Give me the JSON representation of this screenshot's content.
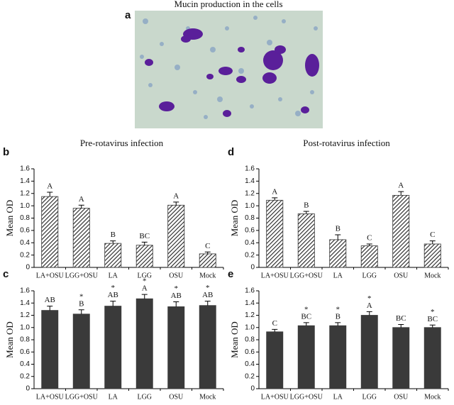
{
  "figure": {
    "label": "a",
    "title": "Mucin production in the cells"
  },
  "chart_data": [
    {
      "type": "bar",
      "panel": "b",
      "title": "Pre-rotavirus infection",
      "y_label": "Mean OD",
      "categories": [
        "LA+OSU",
        "LGG+OSU",
        "LA",
        "LGG",
        "OSU",
        "Mock"
      ],
      "values": [
        1.15,
        0.96,
        0.39,
        0.36,
        1.01,
        0.22
      ],
      "errors": [
        0.07,
        0.05,
        0.04,
        0.05,
        0.05,
        0.03
      ],
      "letters": [
        "A",
        "A",
        "B",
        "BC",
        "A",
        "C"
      ],
      "color": "#333333",
      "hatch": true,
      "ylim": [
        0,
        1.6
      ],
      "yticks": [
        0,
        0.2,
        0.4,
        0.6,
        0.8,
        {
          "value": 1,
          "label": "1.0"
        },
        1.2,
        1.4,
        1.6
      ]
    },
    {
      "type": "bar",
      "panel": "d",
      "title": "Post-rotavirus infection",
      "y_label": "Mean OD",
      "categories": [
        "LA+OSU",
        "LGG+OSU",
        "LA",
        "LGG",
        "OSU",
        "Mock"
      ],
      "values": [
        1.09,
        0.87,
        0.45,
        0.35,
        1.17,
        0.38
      ],
      "errors": [
        0.04,
        0.04,
        0.08,
        0.03,
        0.06,
        0.05
      ],
      "letters": [
        "A",
        "B",
        "B",
        "C",
        "A",
        "C"
      ],
      "color": "#333333",
      "hatch": true,
      "ylim": [
        0,
        1.6
      ],
      "yticks": [
        0,
        0.2,
        0.4,
        0.6,
        0.8,
        {
          "value": 1,
          "label": "1.0"
        },
        1.2,
        1.4,
        1.6
      ]
    },
    {
      "type": "bar",
      "panel": "c",
      "y_label": "Mean OD",
      "categories": [
        "LA+OSU",
        "LGG+OSU",
        "LA",
        "LGG",
        "OSU",
        "Mock"
      ],
      "values": [
        1.28,
        1.22,
        1.35,
        1.47,
        1.34,
        1.36
      ],
      "errors": [
        0.07,
        0.07,
        0.08,
        0.07,
        0.08,
        0.07
      ],
      "letters": [
        "AB",
        "B",
        "AB",
        "A",
        "AB",
        "AB"
      ],
      "stars": [
        null,
        "*",
        "*",
        "*",
        "*",
        "*"
      ],
      "color": "#3a3a3a",
      "hatch": false,
      "ylim": [
        0,
        1.6
      ],
      "yticks": [
        0,
        0.2,
        0.4,
        0.6,
        0.8,
        {
          "value": 1,
          "label": "1.0"
        },
        1.2,
        1.4,
        1.6
      ]
    },
    {
      "type": "bar",
      "panel": "e",
      "y_label": "Mean OD",
      "categories": [
        "LA+OSU",
        "LGG+OSU",
        "LA",
        "LGG",
        "OSU",
        "Mock"
      ],
      "values": [
        0.93,
        1.03,
        1.03,
        1.2,
        1.0,
        1.0
      ],
      "errors": [
        0.04,
        0.05,
        0.05,
        0.06,
        0.05,
        0.04
      ],
      "letters": [
        "C",
        "BC",
        "B",
        "A",
        "BC",
        "BC"
      ],
      "stars": [
        null,
        "*",
        "*",
        "*",
        null,
        "*"
      ],
      "color": "#3a3a3a",
      "hatch": false,
      "ylim": [
        0,
        1.6
      ],
      "yticks": [
        0,
        0.2,
        0.4,
        0.6,
        0.8,
        {
          "value": 1,
          "label": "1.0"
        },
        1.2,
        1.4,
        1.6
      ]
    }
  ]
}
